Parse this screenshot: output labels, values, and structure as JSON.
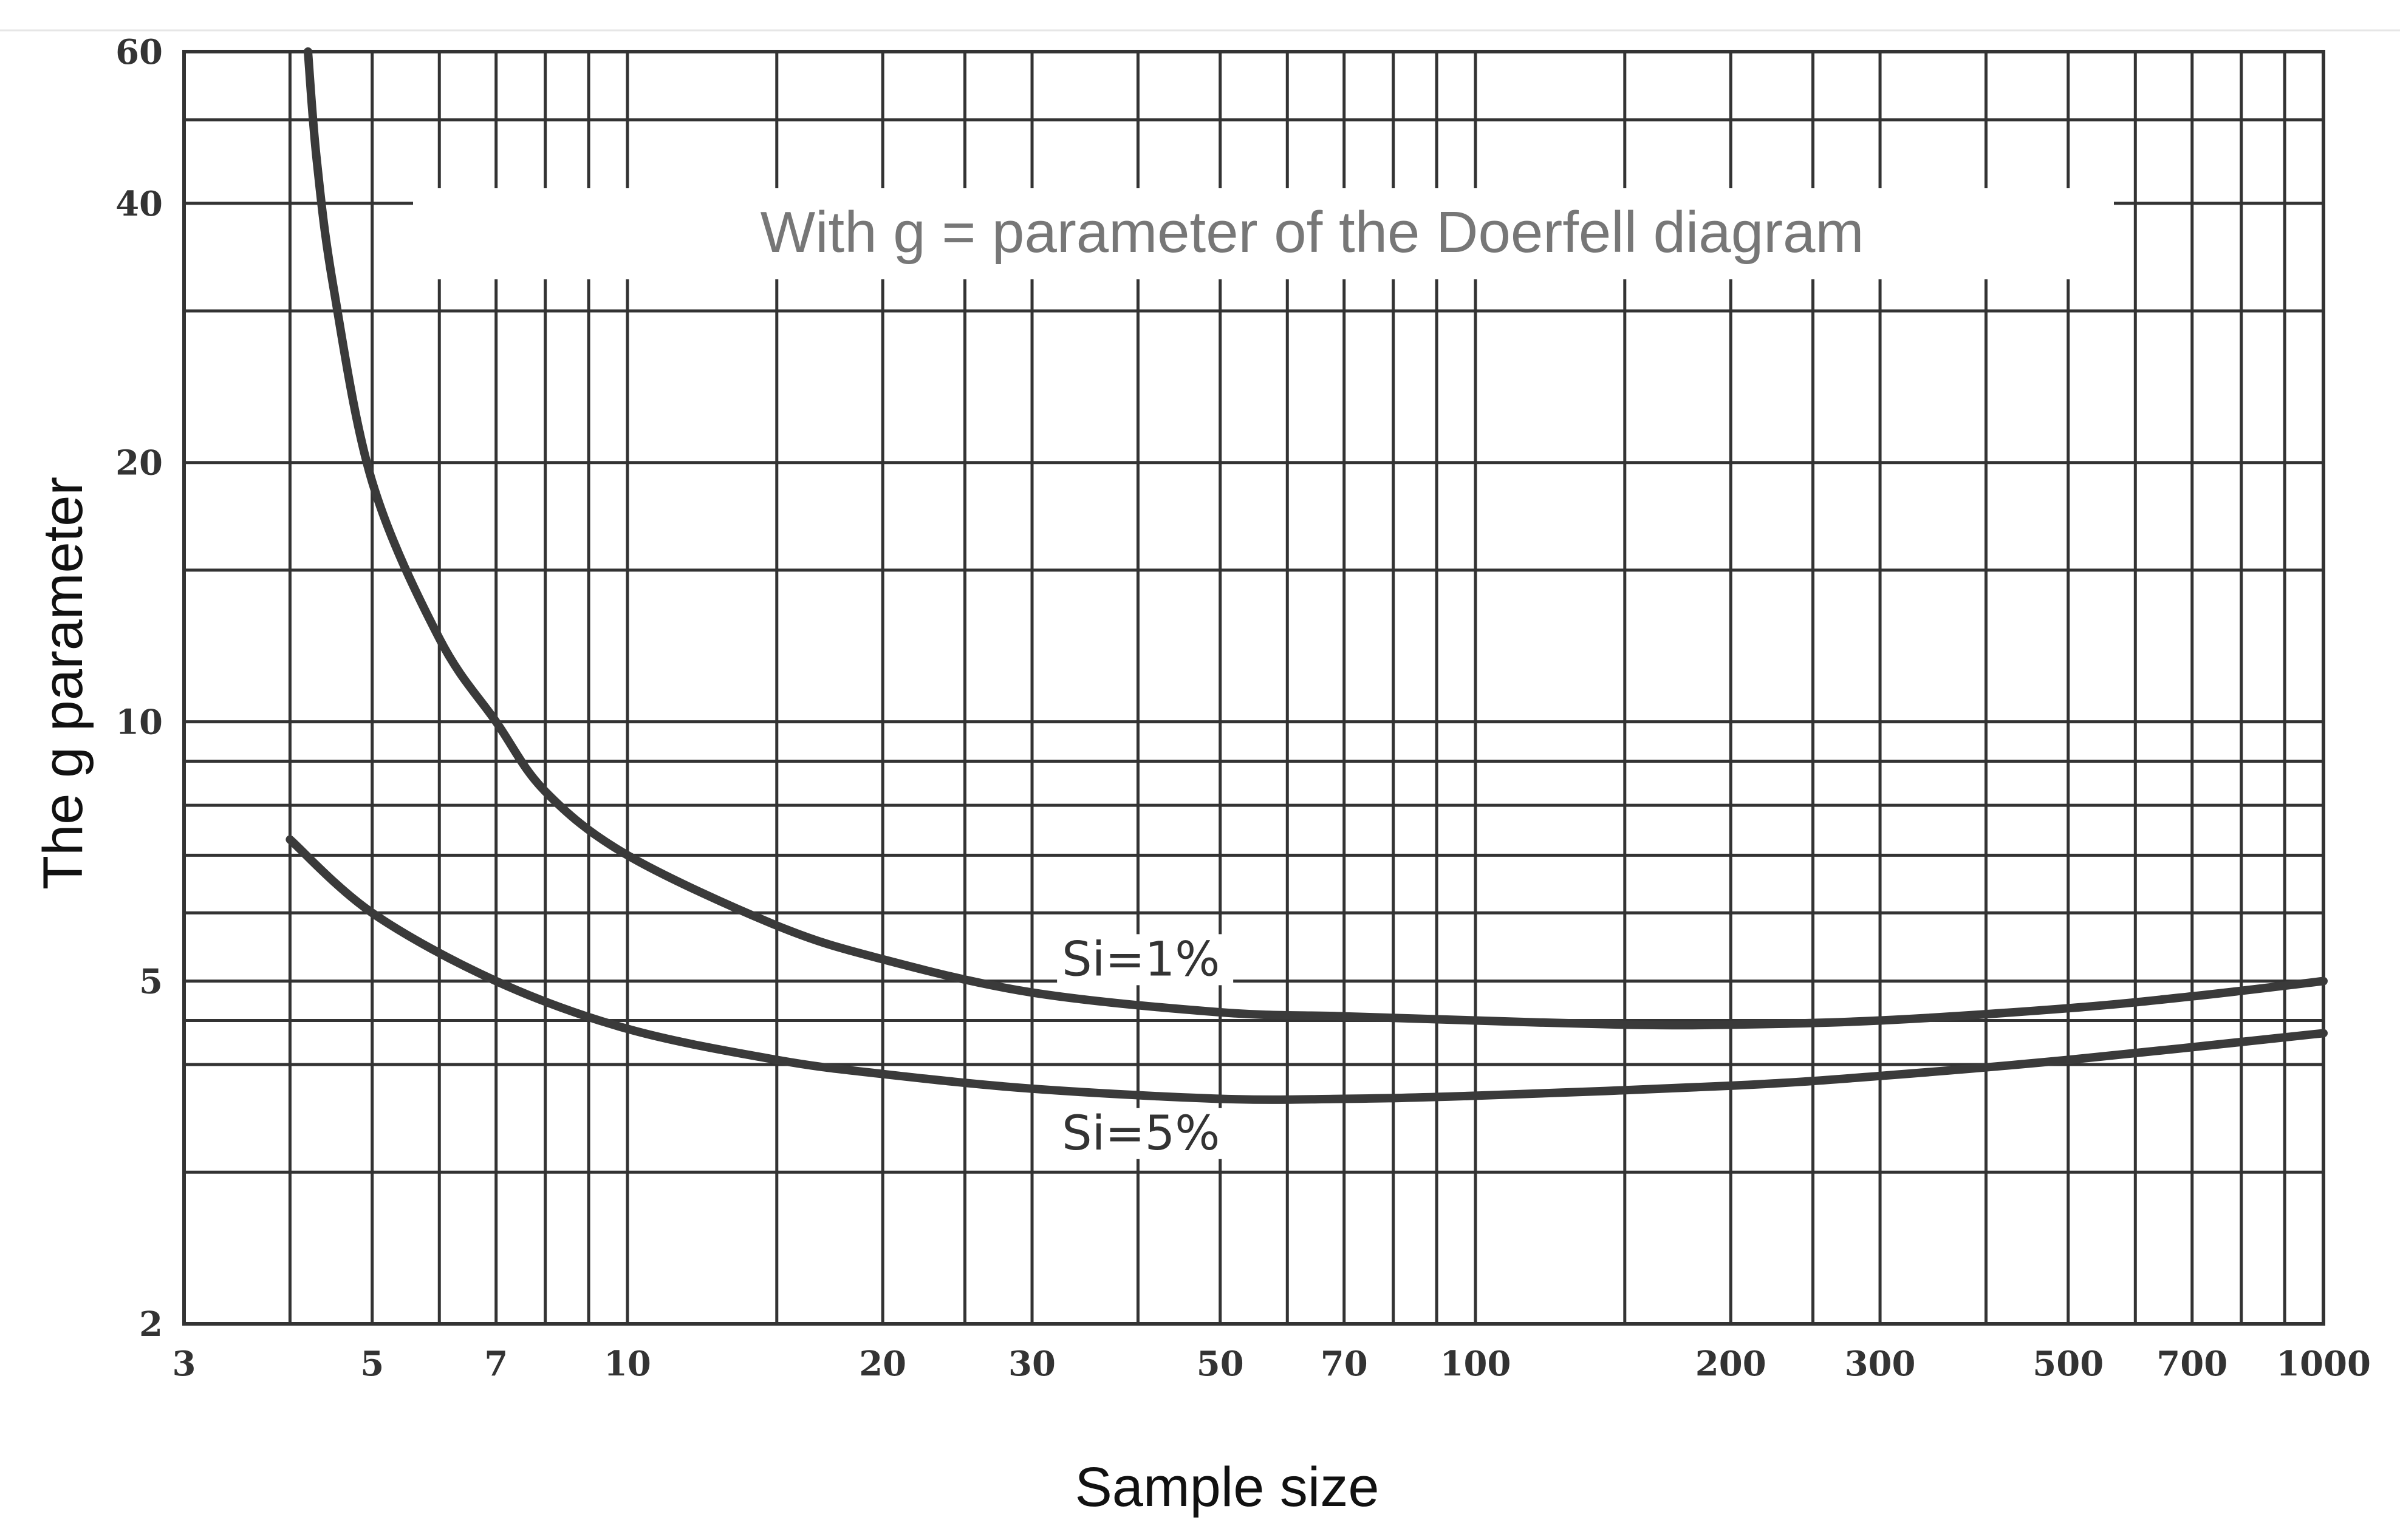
{
  "chart_data": {
    "type": "line",
    "title": "",
    "annotation": "With g = parameter of the Doerfell diagram",
    "xlabel": "Sample size",
    "ylabel": "The g parameter",
    "x_scale": "log",
    "y_scale": "log",
    "xlim": [
      3,
      1000
    ],
    "ylim": [
      2,
      60
    ],
    "grid": true,
    "legend": "none",
    "x_tick_labels": [
      "3",
      "5",
      "7",
      "10",
      "20",
      "30",
      "50",
      "70",
      "100",
      "200",
      "300",
      "500",
      "700",
      "1000"
    ],
    "x_ticks": [
      3,
      5,
      7,
      10,
      20,
      30,
      50,
      70,
      100,
      200,
      300,
      500,
      700,
      1000
    ],
    "x_grid": [
      3,
      4,
      5,
      6,
      7,
      8,
      9,
      10,
      15,
      20,
      25,
      30,
      40,
      50,
      60,
      70,
      80,
      90,
      100,
      150,
      200,
      250,
      300,
      400,
      500,
      600,
      700,
      800,
      900,
      1000
    ],
    "y_tick_labels": [
      "2",
      "5",
      "10",
      "20",
      "40",
      "60"
    ],
    "y_ticks": [
      2,
      5,
      10,
      20,
      40,
      60
    ],
    "y_grid": [
      2,
      3,
      4,
      4.5,
      5,
      6,
      7,
      8,
      9,
      10,
      15,
      20,
      30,
      40,
      50,
      60
    ],
    "series": [
      {
        "name": "Si=1%",
        "x": [
          4.2,
          4.3,
          4.5,
          5,
          6,
          7,
          8,
          10,
          15,
          20,
          30,
          50,
          70,
          100,
          150,
          200,
          300,
          500,
          700,
          1000
        ],
        "y": [
          60,
          45,
          32,
          19,
          12.5,
          10,
          8.3,
          7,
          5.8,
          5.3,
          4.85,
          4.6,
          4.55,
          4.5,
          4.45,
          4.45,
          4.5,
          4.65,
          4.8,
          5
        ]
      },
      {
        "name": "Si=5%",
        "x": [
          4,
          5,
          7,
          10,
          15,
          20,
          30,
          50,
          70,
          100,
          200,
          300,
          500,
          1000
        ],
        "y": [
          7.3,
          6,
          5,
          4.4,
          4.05,
          3.9,
          3.75,
          3.65,
          3.65,
          3.68,
          3.78,
          3.88,
          4.05,
          4.35
        ]
      }
    ]
  }
}
